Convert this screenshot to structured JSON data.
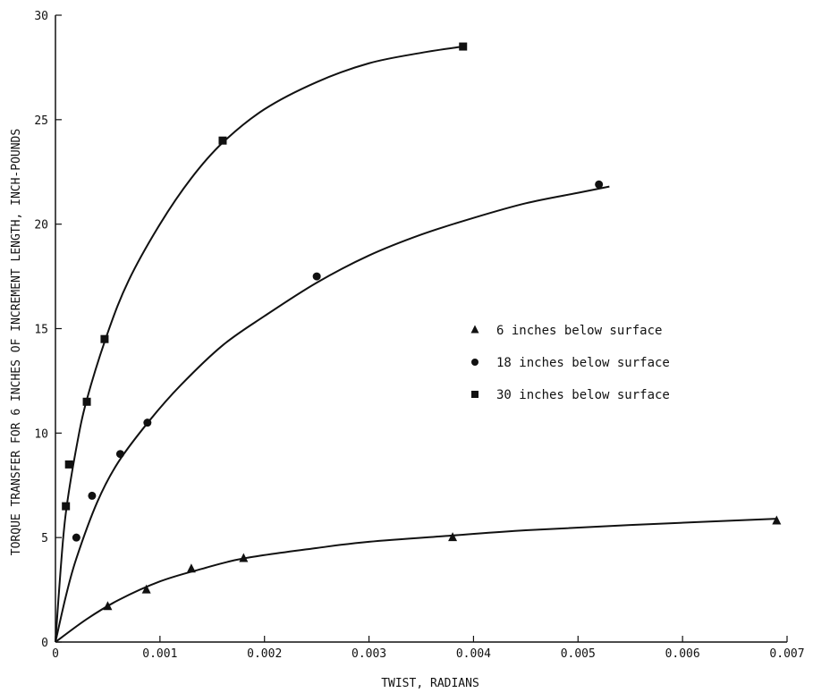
{
  "chart_data": {
    "type": "scatter",
    "xlabel": "TWIST, RADIANS",
    "ylabel": "TORQUE TRANSFER FOR 6 INCHES OF INCREMENT LENGTH, INCH-POUNDS",
    "xlim": [
      0,
      0.007
    ],
    "ylim": [
      0,
      30
    ],
    "x_ticks": [
      "0",
      "0.001",
      "0.002",
      "0.003",
      "0.004",
      "0.005",
      "0.006",
      "0.007"
    ],
    "y_ticks": [
      "0",
      "5",
      "10",
      "15",
      "20",
      "25",
      "30"
    ],
    "grid": false,
    "legend_position": "right-middle",
    "series": [
      {
        "name": "6 inches below surface",
        "marker": "triangle",
        "color": "#111111",
        "points": [
          [
            0.0005,
            1.7
          ],
          [
            0.00087,
            2.5
          ],
          [
            0.0013,
            3.5
          ],
          [
            0.0018,
            4.0
          ],
          [
            0.0038,
            5.0
          ],
          [
            0.0069,
            5.8
          ]
        ],
        "curve": [
          [
            0,
            0
          ],
          [
            0.0003,
            1.1
          ],
          [
            0.0006,
            2.0
          ],
          [
            0.001,
            2.9
          ],
          [
            0.0014,
            3.5
          ],
          [
            0.0018,
            4.0
          ],
          [
            0.0025,
            4.5
          ],
          [
            0.003,
            4.8
          ],
          [
            0.0038,
            5.1
          ],
          [
            0.0045,
            5.35
          ],
          [
            0.0055,
            5.6
          ],
          [
            0.0069,
            5.9
          ]
        ]
      },
      {
        "name": "18 inches below surface",
        "marker": "circle",
        "color": "#111111",
        "points": [
          [
            0.0002,
            5.0
          ],
          [
            0.00035,
            7.0
          ],
          [
            0.00062,
            9.0
          ],
          [
            0.00088,
            10.5
          ],
          [
            0.0025,
            17.5
          ],
          [
            0.0052,
            21.9
          ]
        ],
        "curve": [
          [
            0,
            0
          ],
          [
            0.0001,
            2.2
          ],
          [
            0.0002,
            4.0
          ],
          [
            0.0004,
            6.7
          ],
          [
            0.0006,
            8.6
          ],
          [
            0.0009,
            10.6
          ],
          [
            0.0012,
            12.3
          ],
          [
            0.0016,
            14.2
          ],
          [
            0.002,
            15.6
          ],
          [
            0.0025,
            17.2
          ],
          [
            0.003,
            18.5
          ],
          [
            0.0035,
            19.5
          ],
          [
            0.004,
            20.3
          ],
          [
            0.0045,
            21.0
          ],
          [
            0.005,
            21.5
          ],
          [
            0.0053,
            21.8
          ]
        ]
      },
      {
        "name": "30 inches below surface",
        "marker": "square",
        "color": "#111111",
        "points": [
          [
            0.0001,
            6.5
          ],
          [
            0.00013,
            8.5
          ],
          [
            0.0003,
            11.5
          ],
          [
            0.00047,
            14.5
          ],
          [
            0.0016,
            24.0
          ],
          [
            0.0039,
            28.5
          ]
        ],
        "curve": [
          [
            0,
            0
          ],
          [
            5e-05,
            3.5
          ],
          [
            0.0001,
            6.2
          ],
          [
            0.0002,
            9.3
          ],
          [
            0.0003,
            11.6
          ],
          [
            0.0005,
            14.8
          ],
          [
            0.0007,
            17.3
          ],
          [
            0.001,
            20.0
          ],
          [
            0.0013,
            22.2
          ],
          [
            0.0016,
            23.9
          ],
          [
            0.002,
            25.5
          ],
          [
            0.0025,
            26.8
          ],
          [
            0.003,
            27.7
          ],
          [
            0.0035,
            28.2
          ],
          [
            0.0039,
            28.5
          ]
        ]
      }
    ]
  }
}
